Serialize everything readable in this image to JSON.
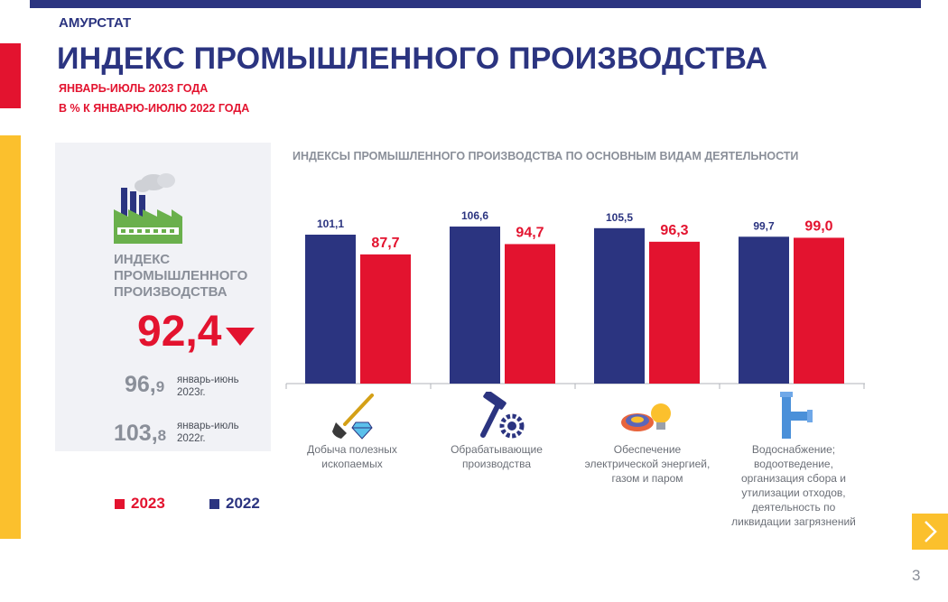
{
  "header": {
    "brand": "АМУРСТАТ",
    "title": "ИНДЕКС ПРОМЫШЛЕННОГО ПРОИЗВОДСТВА",
    "subtitle1": "ЯНВАРЬ-ИЮЛЬ  2023  ГОДА",
    "subtitle2": "В % К ЯНВАРЮ-ИЮЛЮ  2022  ГОДА"
  },
  "summary": {
    "label": "ИНДЕКС ПРОМЫШЛЕННОГО ПРОИЗВОДСТВА",
    "main_value": "92,4",
    "comparisons": [
      {
        "int": "96,",
        "dec": "9",
        "label": "январь-июнь 2023г."
      },
      {
        "int": "103,",
        "dec": "8",
        "label": "январь-июль 2022г."
      }
    ]
  },
  "legend": {
    "item1": "2023",
    "item2": "2022"
  },
  "colors": {
    "y2022": "#2b3480",
    "y2023": "#e3132f",
    "accent": "#fbc02d"
  },
  "chart_data": {
    "type": "bar",
    "title": "ИНДЕКСЫ ПРОМЫШЛЕННОГО ПРОИЗВОДСТВА ПО ОСНОВНЫМ ВИДАМ ДЕЯТЕЛЬНОСТИ",
    "categories": [
      "Добыча полезных ископаемых",
      "Обрабатывающие производства",
      "Обеспечение электрической энергией, газом и паром",
      "Водоснабжение; водоотведение, организация сбора и утилизации отходов, деятельность по ликвидации загрязнений"
    ],
    "series": [
      {
        "name": "2022",
        "values": [
          101.1,
          106.6,
          105.5,
          99.7
        ],
        "labels": [
          "101,1",
          "106,6",
          "105,5",
          "99,7"
        ]
      },
      {
        "name": "2023",
        "values": [
          87.7,
          94.7,
          96.3,
          99.0
        ],
        "labels": [
          "87,7",
          "94,7",
          "96,3",
          "99,0"
        ]
      }
    ],
    "ylim": [
      0,
      120
    ],
    "legend": "bottom-left",
    "grid": false
  },
  "icons": [
    "shovel-diamond-icon",
    "hammer-gear-icon",
    "flame-bulb-icon",
    "water-pipe-icon"
  ],
  "page": {
    "number": "3"
  }
}
